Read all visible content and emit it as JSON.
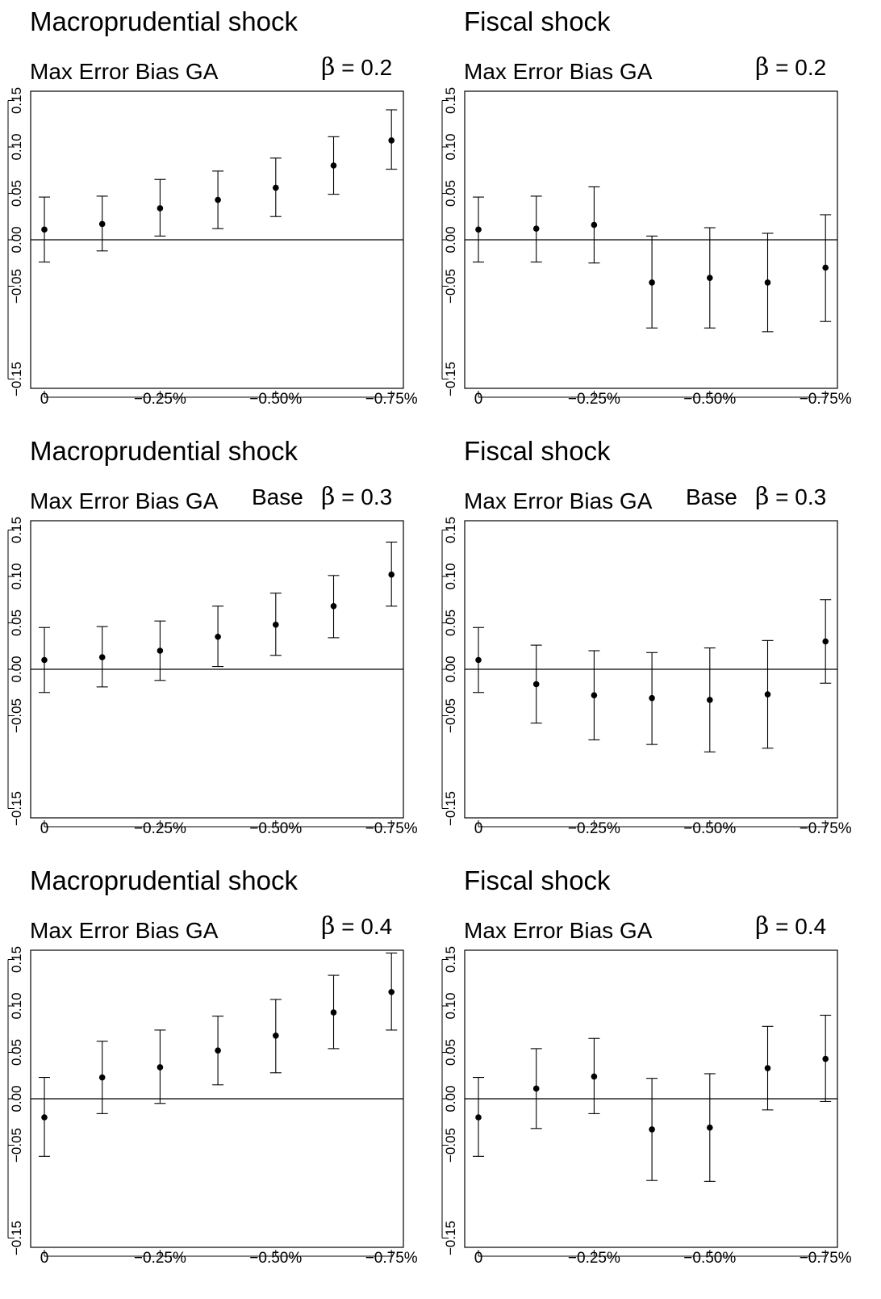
{
  "chart_data": [
    {
      "type": "scatter",
      "title": "Macroprudential shock",
      "subtitle": "Max Error Bias GA",
      "base_label": "",
      "beta_symbol": "β",
      "beta_value": "= 0.2",
      "x_ticks": [
        "0",
        "−0.25%",
        "−0.50%",
        "−0.75%"
      ],
      "y_ticks": [
        "−0.15",
        "−0.05",
        "0.00",
        "0.05",
        "0.10",
        "0.15"
      ],
      "ylim": [
        -0.16,
        0.16
      ],
      "points": [
        {
          "x": 0,
          "y": 0.011,
          "lo": -0.024,
          "hi": 0.046
        },
        {
          "x": 1,
          "y": 0.017,
          "lo": -0.012,
          "hi": 0.047
        },
        {
          "x": 2,
          "y": 0.034,
          "lo": 0.004,
          "hi": 0.065
        },
        {
          "x": 3,
          "y": 0.043,
          "lo": 0.012,
          "hi": 0.074
        },
        {
          "x": 4,
          "y": 0.056,
          "lo": 0.025,
          "hi": 0.088
        },
        {
          "x": 5,
          "y": 0.08,
          "lo": 0.049,
          "hi": 0.111
        },
        {
          "x": 6,
          "y": 0.107,
          "lo": 0.076,
          "hi": 0.14
        }
      ]
    },
    {
      "type": "scatter",
      "title": "Fiscal shock",
      "subtitle": "Max Error Bias GA",
      "base_label": "",
      "beta_symbol": "β",
      "beta_value": "= 0.2",
      "x_ticks": [
        "0",
        "−0.25%",
        "−0.50%",
        "−0.75%"
      ],
      "y_ticks": [
        "−0.15",
        "−0.05",
        "0.00",
        "0.05",
        "0.10",
        "0.15"
      ],
      "ylim": [
        -0.16,
        0.16
      ],
      "points": [
        {
          "x": 0,
          "y": 0.011,
          "lo": -0.024,
          "hi": 0.046
        },
        {
          "x": 1,
          "y": 0.012,
          "lo": -0.024,
          "hi": 0.047
        },
        {
          "x": 2,
          "y": 0.016,
          "lo": -0.025,
          "hi": 0.057
        },
        {
          "x": 3,
          "y": -0.046,
          "lo": -0.095,
          "hi": 0.004
        },
        {
          "x": 4,
          "y": -0.041,
          "lo": -0.095,
          "hi": 0.013
        },
        {
          "x": 5,
          "y": -0.046,
          "lo": -0.099,
          "hi": 0.007
        },
        {
          "x": 6,
          "y": -0.03,
          "lo": -0.088,
          "hi": 0.027
        }
      ]
    },
    {
      "type": "scatter",
      "title": "Macroprudential shock",
      "subtitle": "Max Error Bias GA",
      "base_label": "Base",
      "beta_symbol": "β",
      "beta_value": "= 0.3",
      "x_ticks": [
        "0",
        "−0.25%",
        "−0.50%",
        "−0.75%"
      ],
      "y_ticks": [
        "−0.15",
        "−0.05",
        "0.00",
        "0.05",
        "0.10",
        "0.15"
      ],
      "ylim": [
        -0.16,
        0.16
      ],
      "points": [
        {
          "x": 0,
          "y": 0.01,
          "lo": -0.025,
          "hi": 0.045
        },
        {
          "x": 1,
          "y": 0.013,
          "lo": -0.019,
          "hi": 0.046
        },
        {
          "x": 2,
          "y": 0.02,
          "lo": -0.012,
          "hi": 0.052
        },
        {
          "x": 3,
          "y": 0.035,
          "lo": 0.003,
          "hi": 0.068
        },
        {
          "x": 4,
          "y": 0.048,
          "lo": 0.015,
          "hi": 0.082
        },
        {
          "x": 5,
          "y": 0.068,
          "lo": 0.034,
          "hi": 0.101
        },
        {
          "x": 6,
          "y": 0.102,
          "lo": 0.068,
          "hi": 0.137
        }
      ]
    },
    {
      "type": "scatter",
      "title": "Fiscal shock",
      "subtitle": "Max Error Bias GA",
      "base_label": "Base",
      "beta_symbol": "β",
      "beta_value": "= 0.3",
      "x_ticks": [
        "0",
        "−0.25%",
        "−0.50%",
        "−0.75%"
      ],
      "y_ticks": [
        "−0.15",
        "−0.05",
        "0.00",
        "0.05",
        "0.10",
        "0.15"
      ],
      "ylim": [
        -0.16,
        0.16
      ],
      "points": [
        {
          "x": 0,
          "y": 0.01,
          "lo": -0.025,
          "hi": 0.045
        },
        {
          "x": 1,
          "y": -0.016,
          "lo": -0.058,
          "hi": 0.026
        },
        {
          "x": 2,
          "y": -0.028,
          "lo": -0.076,
          "hi": 0.02
        },
        {
          "x": 3,
          "y": -0.031,
          "lo": -0.081,
          "hi": 0.018
        },
        {
          "x": 4,
          "y": -0.033,
          "lo": -0.089,
          "hi": 0.023
        },
        {
          "x": 5,
          "y": -0.027,
          "lo": -0.085,
          "hi": 0.031
        },
        {
          "x": 6,
          "y": 0.03,
          "lo": -0.015,
          "hi": 0.075
        }
      ]
    },
    {
      "type": "scatter",
      "title": "Macroprudential shock",
      "subtitle": "Max Error Bias GA",
      "base_label": "",
      "beta_symbol": "β",
      "beta_value": "= 0.4",
      "x_ticks": [
        "0",
        "−0.25%",
        "−0.50%",
        "−0.75%"
      ],
      "y_ticks": [
        "−0.15",
        "−0.05",
        "0.00",
        "0.05",
        "0.10",
        "0.15"
      ],
      "ylim": [
        -0.16,
        0.16
      ],
      "points": [
        {
          "x": 0,
          "y": -0.02,
          "lo": -0.062,
          "hi": 0.023
        },
        {
          "x": 1,
          "y": 0.023,
          "lo": -0.016,
          "hi": 0.062
        },
        {
          "x": 2,
          "y": 0.034,
          "lo": -0.005,
          "hi": 0.074
        },
        {
          "x": 3,
          "y": 0.052,
          "lo": 0.015,
          "hi": 0.089
        },
        {
          "x": 4,
          "y": 0.068,
          "lo": 0.028,
          "hi": 0.107
        },
        {
          "x": 5,
          "y": 0.093,
          "lo": 0.054,
          "hi": 0.133
        },
        {
          "x": 6,
          "y": 0.115,
          "lo": 0.074,
          "hi": 0.157
        }
      ]
    },
    {
      "type": "scatter",
      "title": "Fiscal shock",
      "subtitle": "Max Error Bias GA",
      "base_label": "",
      "beta_symbol": "β",
      "beta_value": "= 0.4",
      "x_ticks": [
        "0",
        "−0.25%",
        "−0.50%",
        "−0.75%"
      ],
      "y_ticks": [
        "−0.15",
        "−0.05",
        "0.00",
        "0.05",
        "0.10",
        "0.15"
      ],
      "ylim": [
        -0.16,
        0.16
      ],
      "points": [
        {
          "x": 0,
          "y": -0.02,
          "lo": -0.062,
          "hi": 0.023
        },
        {
          "x": 1,
          "y": 0.011,
          "lo": -0.032,
          "hi": 0.054
        },
        {
          "x": 2,
          "y": 0.024,
          "lo": -0.016,
          "hi": 0.065
        },
        {
          "x": 3,
          "y": -0.033,
          "lo": -0.088,
          "hi": 0.022
        },
        {
          "x": 4,
          "y": -0.031,
          "lo": -0.089,
          "hi": 0.027
        },
        {
          "x": 5,
          "y": 0.033,
          "lo": -0.012,
          "hi": 0.078
        },
        {
          "x": 6,
          "y": 0.043,
          "lo": -0.003,
          "hi": 0.09
        }
      ]
    }
  ]
}
